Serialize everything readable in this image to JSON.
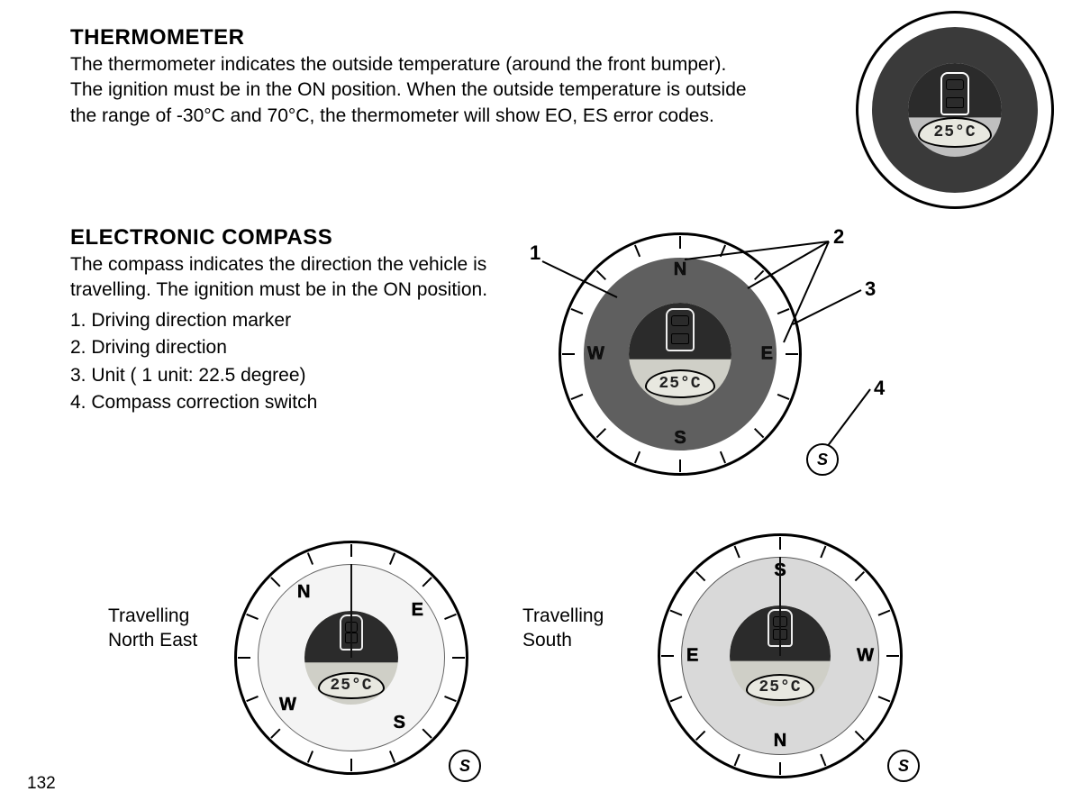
{
  "page_number": "132",
  "thermometer": {
    "title": "THERMOMETER",
    "body": "The thermometer indicates the outside temperature (around the front bumper). The ignition must be in the  ON position. When the outside temperature is outside the range of -30°C and 70°C, the thermometer will show EO, ES error codes.",
    "gauge": {
      "lcd_value": "25°C",
      "ring_color": "#3a3a3a",
      "outer_bg": "#ffffff"
    }
  },
  "compass": {
    "title": "ELECTRONIC  COMPASS",
    "intro": "The compass indicates the direction the vehicle is travelling. The ignition must be in the ON position.",
    "items": [
      "1. Driving direction marker",
      "2. Driving direction",
      "3. Unit ( 1 unit: 22.5 degree)",
      "4. Compass correction switch"
    ],
    "annotations": {
      "a1": "1",
      "a2": "2",
      "a3": "3",
      "a4": "4"
    },
    "main_gauge": {
      "lcd_value": "25°C",
      "ring_color": "#5f5f5f",
      "cardinals": {
        "n": "N",
        "e": "E",
        "s": "S",
        "w": "W"
      },
      "s_button": "S"
    },
    "ne_example": {
      "caption_l1": "Travelling",
      "caption_l2": "North East",
      "lcd_value": "25°C",
      "ring_bg": "#f4f4f4",
      "cardinals": {
        "n": "N",
        "e": "E",
        "s": "S",
        "w": "W"
      },
      "s_button": "S"
    },
    "s_example": {
      "caption_l1": "Travelling",
      "caption_l2": "South",
      "lcd_value": "25°C",
      "ring_bg": "#d9d9d9",
      "cardinals": {
        "n": "N",
        "e": "E",
        "s": "S",
        "w": "W"
      },
      "s_button": "S"
    }
  },
  "style": {
    "text_color": "#000000",
    "page_bg": "#ffffff",
    "tick_count": 16
  }
}
